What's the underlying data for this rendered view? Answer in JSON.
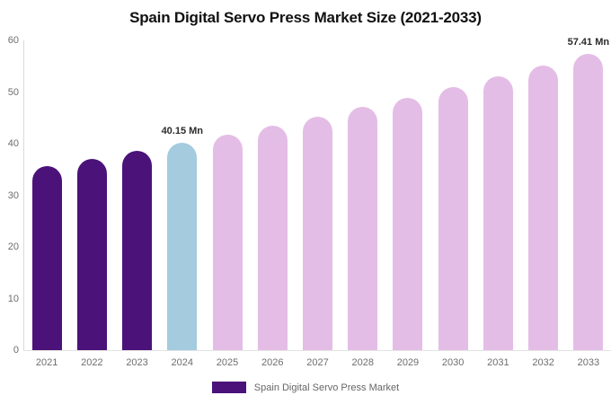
{
  "chart_data": {
    "type": "bar",
    "title": "Spain Digital Servo Press Market Size (2021-2033)",
    "unit": "Mn",
    "categories": [
      "2021",
      "2022",
      "2023",
      "2024",
      "2025",
      "2026",
      "2027",
      "2028",
      "2029",
      "2030",
      "2031",
      "2032",
      "2033"
    ],
    "values": [
      35.66,
      37.1,
      38.6,
      40.15,
      41.77,
      43.46,
      45.22,
      47.05,
      48.95,
      50.93,
      52.99,
      55.14,
      57.41
    ],
    "bar_roles": [
      "historical",
      "historical",
      "historical",
      "base_year",
      "forecast",
      "forecast",
      "forecast",
      "forecast",
      "forecast",
      "forecast",
      "forecast",
      "forecast",
      "forecast"
    ],
    "colors": {
      "historical": "#4B1279",
      "base_year": "#A4CBDE",
      "forecast": "#E4BDE6"
    },
    "annotations": [
      {
        "category": "2024",
        "text": "40.15 Mn"
      },
      {
        "category": "2033",
        "text": "57.41 Mn"
      }
    ],
    "xlabel": "",
    "ylabel": "",
    "ylim": [
      0,
      60
    ],
    "yticks": [
      0,
      10,
      20,
      30,
      40,
      50,
      60
    ],
    "grid": false,
    "legend_position": "bottom",
    "legend": {
      "label": "Spain Digital Servo Press Market"
    }
  }
}
